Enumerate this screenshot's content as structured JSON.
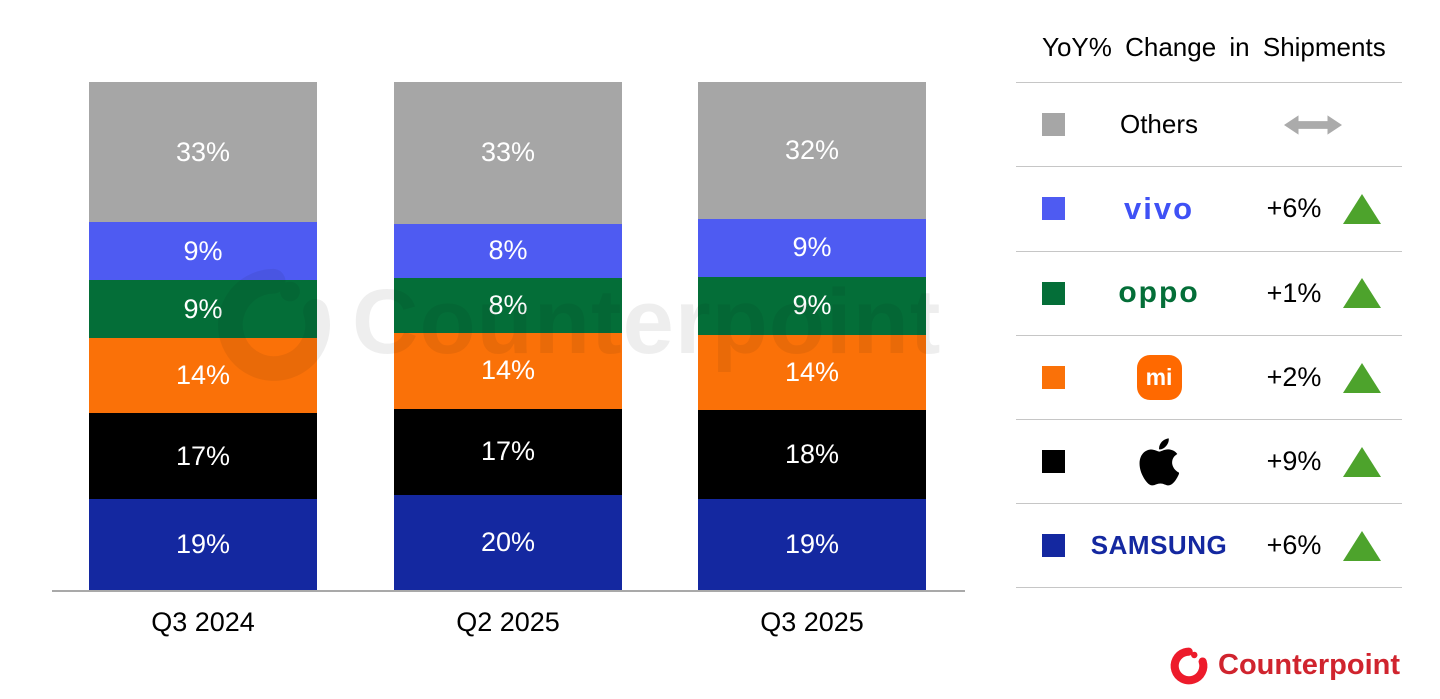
{
  "legend": {
    "title": "YoY% Change in Shipments",
    "rows": [
      {
        "key": "others",
        "label": "Others",
        "swatch": "#a6a6a6",
        "change": "",
        "indicator": "flat-arrow"
      },
      {
        "key": "vivo",
        "label": "vivo",
        "swatch": "#4e5bf2",
        "change": "+6%",
        "indicator": "up-triangle"
      },
      {
        "key": "oppo",
        "label": "oppo",
        "swatch": "#046e38",
        "change": "+1%",
        "indicator": "up-triangle"
      },
      {
        "key": "xiaomi",
        "label": "mi",
        "swatch": "#fa7108",
        "change": "+2%",
        "indicator": "up-triangle"
      },
      {
        "key": "apple",
        "label": "",
        "swatch": "#000000",
        "change": "+9%",
        "indicator": "up-triangle"
      },
      {
        "key": "samsung",
        "label": "SAMSUNG",
        "swatch": "#1428a0",
        "change": "+6%",
        "indicator": "up-triangle"
      }
    ],
    "indicator_up_color": "#4da32c",
    "flat_arrow_color": "#ababab"
  },
  "watermark": {
    "text": "Counterpoint"
  },
  "footer": {
    "brand": "Counterpoint",
    "brand_color": "#d0242e"
  },
  "chart_data": {
    "type": "bar",
    "subtype": "stacked-100",
    "unit": "percent",
    "grid": false,
    "legend_position": "right",
    "categories": [
      "Q3 2024",
      "Q2 2025",
      "Q3 2025"
    ],
    "stack_order_top_to_bottom": [
      "Others",
      "vivo",
      "OPPO",
      "Xiaomi",
      "Apple",
      "Samsung"
    ],
    "series": [
      {
        "name": "Others",
        "color": "#a6a6a6",
        "values": [
          33,
          33,
          32
        ],
        "yoy_change": "flat"
      },
      {
        "name": "vivo",
        "color": "#4e5bf2",
        "values": [
          9,
          8,
          9
        ],
        "yoy_change": "+6%"
      },
      {
        "name": "OPPO",
        "color": "#046e38",
        "values": [
          9,
          8,
          9
        ],
        "yoy_change": "+1%"
      },
      {
        "name": "Xiaomi",
        "color": "#fa7108",
        "values": [
          14,
          14,
          14
        ],
        "yoy_change": "+2%"
      },
      {
        "name": "Apple",
        "color": "#000000",
        "values": [
          17,
          17,
          18
        ],
        "yoy_change": "+9%"
      },
      {
        "name": "Samsung",
        "color": "#1428a0",
        "values": [
          19,
          20,
          19
        ],
        "yoy_change": "+6%"
      }
    ]
  }
}
